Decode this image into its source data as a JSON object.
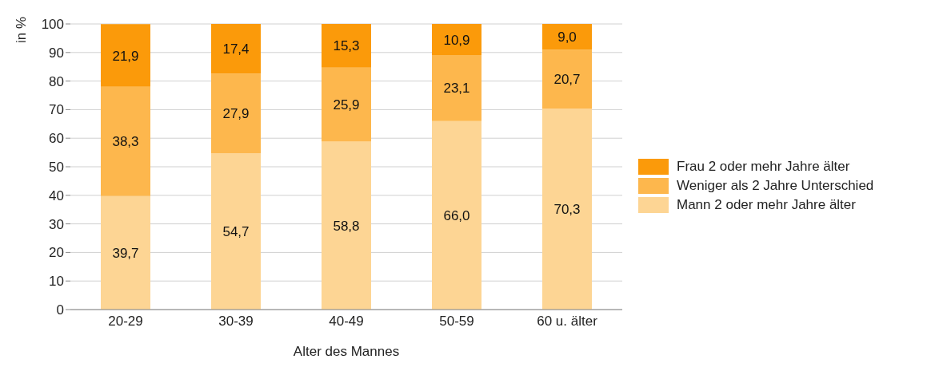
{
  "chart_data": {
    "type": "bar",
    "stacked": true,
    "xlabel": "Alter des Mannes",
    "ylabel": "in %",
    "categories": [
      "20-29",
      "30-39",
      "40-49",
      "50-59",
      "60 u. älter"
    ],
    "series": [
      {
        "name": "Mann 2 oder mehr Jahre älter",
        "color": "#fdd594",
        "values": [
          39.7,
          54.7,
          58.8,
          66.0,
          70.3
        ],
        "value_labels": [
          "39,7",
          "54,7",
          "58,8",
          "66,0",
          "70,3"
        ]
      },
      {
        "name": "Weniger als 2 Jahre Unterschied",
        "color": "#fdb74d",
        "values": [
          38.3,
          27.9,
          25.9,
          23.1,
          20.7
        ],
        "value_labels": [
          "38,3",
          "27,9",
          "25,9",
          "23,1",
          "20,7"
        ]
      },
      {
        "name": "Frau 2 oder mehr Jahre älter",
        "color": "#fb9a0a",
        "values": [
          21.9,
          17.4,
          15.3,
          10.9,
          9.0
        ],
        "value_labels": [
          "21,9",
          "17,4",
          "15,3",
          "10,9",
          "9,0"
        ]
      }
    ],
    "ylim": [
      0,
      100
    ],
    "yticks": [
      0,
      10,
      20,
      30,
      40,
      50,
      60,
      70,
      80,
      90,
      100
    ],
    "grid": "y",
    "legend": "right"
  }
}
